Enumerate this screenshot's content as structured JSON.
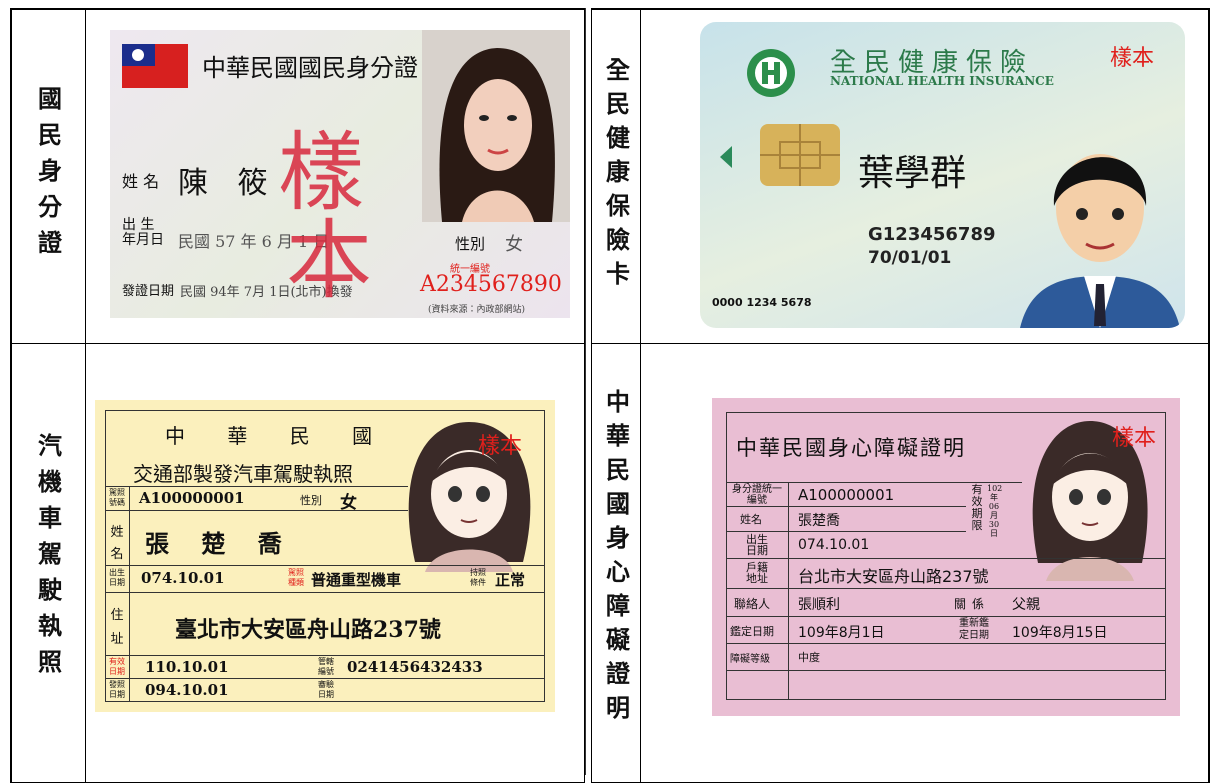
{
  "cells": [
    {
      "label": "國民身分證",
      "card": {
        "title": "中華民國國民身分證",
        "name_label": "姓 名",
        "name": "陳 筱",
        "stamp_1": "樣",
        "stamp_2": "本",
        "birth_label": "出 生 年月日",
        "birth": "民國 57 年 6 月 1 日",
        "gender_label": "性別",
        "gender": "女",
        "id_label": "統一編號",
        "id": "A234567890",
        "issue_label": "發證日期",
        "issue": "民國 94年 7月 1日(北市)換發",
        "source": "(資料來源：內政部網站)"
      }
    },
    {
      "label": "全民健康保險卡",
      "card": {
        "title": "全民健康保險",
        "subtitle": "NATIONAL HEALTH INSURANCE",
        "sample": "樣本",
        "name": "葉學群",
        "id": "G123456789",
        "birth": "70/01/01",
        "serial": "0000 1234 5678"
      }
    },
    {
      "label": "汽機車駕駛執照",
      "card": {
        "title_1": "中 華 民 國",
        "title_2": "交通部製發汽車駕駛執照",
        "sample": "樣本",
        "license_no_label": "駕照號碼",
        "license_no": "A100000001",
        "gender_label": "性別",
        "gender": "女",
        "name_label": "姓名",
        "name": "張 楚 喬",
        "birth_label": "出生日期",
        "birth": "074.10.01",
        "type_label": "駕照種類",
        "type": "普通重型機車",
        "condition_label": "持照條件",
        "condition": "正常",
        "address_label": "住址",
        "address": "臺北市大安區舟山路237號",
        "valid_label": "有效日期",
        "valid": "110.10.01",
        "office_label": "管轄編號",
        "office": "0241456432433",
        "issue_label": "發照日期",
        "issue": "094.10.01",
        "inspect_label": "審驗日期"
      }
    },
    {
      "label": "中華民國身心障礙證明",
      "card": {
        "title": "中華民國身心障礙證明",
        "sample": "樣本",
        "id_label": "身分證統一編號",
        "id": "A100000001",
        "expiry_label": "有效期限",
        "expiry": "102年06月30日",
        "name_label": "姓名",
        "name": "張楚喬",
        "birth_label": "出生日期",
        "birth": "074.10.01",
        "address_label": "戶籍地址",
        "address": "台北市大安區舟山路237號",
        "contact_label": "聯絡人",
        "contact": "張順利",
        "relation_label": "關係",
        "relation": "父親",
        "assess_label": "鑑定日期",
        "assess": "109年8月1日",
        "reassess_label": "重新鑑定日期",
        "reassess": "109年8月15日",
        "level_label": "障礙等級",
        "level": "中度"
      }
    }
  ]
}
